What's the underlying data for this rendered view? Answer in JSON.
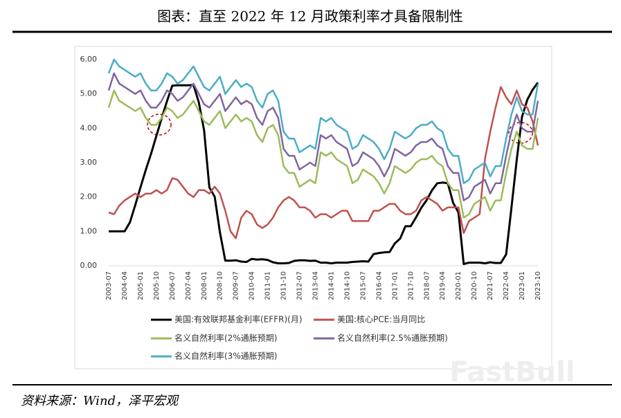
{
  "chart_data": {
    "type": "line",
    "title": "图表：直至 2022 年 12 月政策利率才具备限制性",
    "source": "资料来源：Wind，泽平宏观",
    "watermark": "FastBull",
    "categories": [
      "2003-07",
      null,
      null,
      "2004-04",
      null,
      null,
      "2005-01",
      null,
      null,
      "2005-10",
      null,
      null,
      "2006-07",
      null,
      null,
      "2007-04",
      null,
      null,
      "2008-01",
      null,
      null,
      "2008-10",
      null,
      null,
      "2009-07",
      null,
      null,
      "2010-04",
      null,
      null,
      "2011-01",
      null,
      null,
      "2011-10",
      null,
      null,
      "2012-07",
      null,
      null,
      "2013-04",
      null,
      null,
      "2014-01",
      null,
      null,
      "2014-10",
      null,
      null,
      "2015-07",
      null,
      null,
      "2016-04",
      null,
      null,
      "2017-01",
      null,
      null,
      "2017-10",
      null,
      null,
      "2018-07",
      null,
      null,
      "2019-04",
      null,
      null,
      "2020-01",
      null,
      null,
      "2020-10",
      null,
      null,
      "2021-07",
      null,
      null,
      "2022-04",
      null,
      null,
      "2023-01",
      null,
      null,
      "2023-10"
    ],
    "series": [
      {
        "name": "美国:有效联邦基金利率(EFFR)(月)",
        "color": "#000000",
        "width": 3,
        "values": [
          1.0,
          1.0,
          1.0,
          1.0,
          1.26,
          1.76,
          2.28,
          2.79,
          3.26,
          3.78,
          4.29,
          4.79,
          5.24,
          5.25,
          5.25,
          5.25,
          5.26,
          4.76,
          3.94,
          2.28,
          2.01,
          0.97,
          0.15,
          0.15,
          0.16,
          0.12,
          0.11,
          0.2,
          0.18,
          0.19,
          0.17,
          0.1,
          0.07,
          0.07,
          0.08,
          0.14,
          0.16,
          0.16,
          0.14,
          0.15,
          0.09,
          0.09,
          0.07,
          0.09,
          0.09,
          0.09,
          0.11,
          0.12,
          0.13,
          0.12,
          0.34,
          0.37,
          0.39,
          0.4,
          0.65,
          0.79,
          1.15,
          1.15,
          1.41,
          1.69,
          1.91,
          2.19,
          2.4,
          2.42,
          2.4,
          1.83,
          1.55,
          0.05,
          0.09,
          0.09,
          0.09,
          0.07,
          0.1,
          0.08,
          0.08,
          0.33,
          1.68,
          3.08,
          4.33,
          4.83,
          5.12,
          5.33
        ]
      },
      {
        "name": "美国:核心PCE:当月同比",
        "color": "#c0504d",
        "width": 2.5,
        "values": [
          1.55,
          1.5,
          1.75,
          1.9,
          2.0,
          2.1,
          2.0,
          2.1,
          2.1,
          2.2,
          2.1,
          2.2,
          2.55,
          2.5,
          2.3,
          2.1,
          2.0,
          2.2,
          2.2,
          2.1,
          2.3,
          2.1,
          1.6,
          1.0,
          0.8,
          1.4,
          1.6,
          1.5,
          1.2,
          1.1,
          1.2,
          1.4,
          1.7,
          1.9,
          2.0,
          1.9,
          1.7,
          1.7,
          1.6,
          1.4,
          1.5,
          1.5,
          1.4,
          1.5,
          1.6,
          1.6,
          1.3,
          1.3,
          1.3,
          1.3,
          1.6,
          1.6,
          1.7,
          1.8,
          1.8,
          1.6,
          1.5,
          1.5,
          1.6,
          1.9,
          2.0,
          1.9,
          1.8,
          1.6,
          1.7,
          1.7,
          1.7,
          0.95,
          1.3,
          1.4,
          1.5,
          3.1,
          3.9,
          4.6,
          5.2,
          4.9,
          4.7,
          5.1,
          4.7,
          4.6,
          4.2,
          3.5
        ]
      },
      {
        "name": "名义自然利率(2%通胀预期)",
        "color": "#9bbb59",
        "width": 2.5,
        "values": [
          4.6,
          5.1,
          4.8,
          4.7,
          4.6,
          4.5,
          4.6,
          4.3,
          4.1,
          4.1,
          4.3,
          4.6,
          4.5,
          4.3,
          4.4,
          4.6,
          4.8,
          4.5,
          4.2,
          4.1,
          4.3,
          4.5,
          4.0,
          4.2,
          4.4,
          4.2,
          4.3,
          4.2,
          3.8,
          3.6,
          4.0,
          4.1,
          3.8,
          2.9,
          2.7,
          2.7,
          2.3,
          2.4,
          2.5,
          2.4,
          3.3,
          3.2,
          3.3,
          3.1,
          3.0,
          2.9,
          2.4,
          2.5,
          2.8,
          2.7,
          2.6,
          2.4,
          2.1,
          2.4,
          2.9,
          2.8,
          2.7,
          2.8,
          3.0,
          3.1,
          3.1,
          3.2,
          3.0,
          2.9,
          2.4,
          2.2,
          2.2,
          1.4,
          1.5,
          1.8,
          1.9,
          2.0,
          1.6,
          1.9,
          1.9,
          2.7,
          3.4,
          3.9,
          3.5,
          3.4,
          3.4,
          4.3
        ]
      },
      {
        "name": "名义自然利率(2.5%通胀预期)",
        "color": "#8064a2",
        "width": 2.5,
        "values": [
          5.1,
          5.6,
          5.3,
          5.2,
          5.1,
          5.0,
          5.1,
          4.8,
          4.6,
          4.6,
          4.8,
          5.1,
          5.0,
          4.8,
          4.9,
          5.1,
          5.3,
          5.0,
          4.7,
          4.6,
          4.8,
          5.0,
          4.5,
          4.7,
          4.9,
          4.7,
          4.8,
          4.7,
          4.3,
          4.1,
          4.5,
          4.6,
          4.3,
          3.4,
          3.2,
          3.2,
          2.8,
          2.9,
          3.0,
          2.9,
          3.8,
          3.7,
          3.8,
          3.6,
          3.5,
          3.4,
          2.9,
          3.0,
          3.3,
          3.2,
          3.1,
          2.9,
          2.6,
          2.9,
          3.4,
          3.3,
          3.2,
          3.3,
          3.5,
          3.6,
          3.6,
          3.7,
          3.5,
          3.4,
          2.9,
          2.7,
          2.7,
          1.9,
          2.0,
          2.3,
          2.4,
          2.5,
          2.1,
          2.4,
          2.4,
          3.2,
          3.9,
          4.4,
          4.0,
          3.9,
          3.9,
          4.8
        ]
      },
      {
        "name": "名义自然利率(3%通胀预期)",
        "color": "#4bacc6",
        "width": 2.5,
        "values": [
          5.6,
          6.0,
          5.8,
          5.7,
          5.6,
          5.5,
          5.6,
          5.3,
          5.1,
          5.1,
          5.3,
          5.6,
          5.5,
          5.3,
          5.4,
          5.6,
          5.8,
          5.5,
          5.2,
          5.1,
          5.3,
          5.5,
          5.0,
          5.2,
          5.4,
          5.2,
          5.3,
          5.2,
          4.8,
          4.6,
          5.0,
          5.1,
          4.8,
          3.9,
          3.7,
          3.7,
          3.3,
          3.4,
          3.5,
          3.4,
          4.3,
          4.2,
          4.3,
          4.1,
          4.0,
          3.9,
          3.4,
          3.5,
          3.8,
          3.7,
          3.6,
          3.4,
          3.1,
          3.4,
          3.9,
          3.8,
          3.7,
          3.8,
          4.0,
          4.1,
          4.1,
          4.2,
          4.0,
          3.9,
          3.4,
          3.2,
          3.2,
          2.4,
          2.5,
          2.8,
          2.9,
          3.0,
          2.6,
          2.9,
          2.9,
          3.7,
          4.4,
          4.9,
          4.5,
          4.4,
          4.4,
          5.3
        ]
      }
    ],
    "ylim": [
      0,
      6
    ],
    "yticks": [
      {
        "value": 0,
        "label": "0.00"
      },
      {
        "value": 1,
        "label": "1.00"
      },
      {
        "value": 2,
        "label": "2.00"
      },
      {
        "value": 3,
        "label": "3.00"
      },
      {
        "value": 4,
        "label": "4.00"
      },
      {
        "value": 5,
        "label": "5.00"
      },
      {
        "value": 6,
        "label": "6.00"
      }
    ],
    "grid": false
  }
}
